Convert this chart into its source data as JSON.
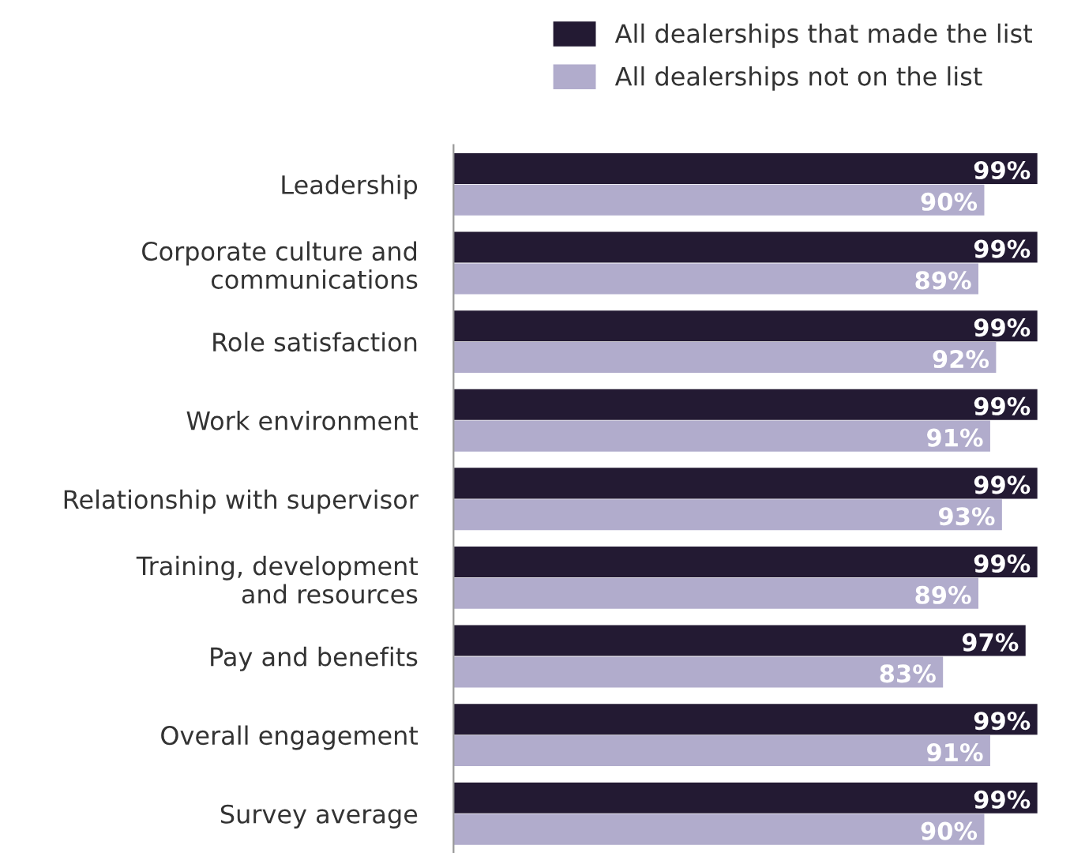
{
  "chart_data": {
    "type": "bar",
    "orientation": "horizontal",
    "categories": [
      "Leadership",
      "Corporate culture and\ncommunications",
      "Role satisfaction",
      "Work environment",
      "Relationship with supervisor",
      "Training, development\nand resources",
      "Pay and benefits",
      "Overall engagement",
      "Survey average"
    ],
    "series": [
      {
        "name": "All dealerships that made the list",
        "color": "#231a33",
        "values": [
          99,
          99,
          99,
          99,
          99,
          99,
          97,
          99,
          99
        ],
        "value_labels": [
          "99%",
          "99%",
          "99%",
          "99%",
          "99%",
          "99%",
          "97%",
          "99%",
          "99%"
        ]
      },
      {
        "name": "All dealerships not on the list",
        "color": "#b1accc",
        "values": [
          90,
          89,
          92,
          91,
          93,
          89,
          83,
          91,
          90
        ],
        "value_labels": [
          "90%",
          "89%",
          "92%",
          "91%",
          "93%",
          "89%",
          "83%",
          "91%",
          "90%"
        ]
      }
    ],
    "legend": "top",
    "grid": false,
    "tick_labels": "y"
  }
}
